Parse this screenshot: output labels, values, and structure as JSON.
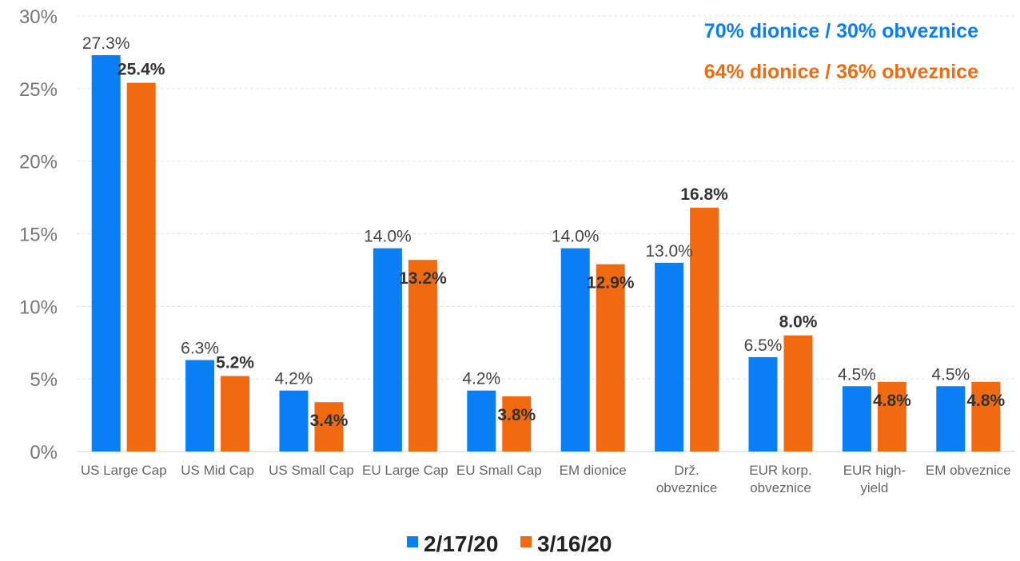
{
  "chart_data": {
    "type": "bar",
    "title": "",
    "xlabel": "",
    "ylabel": "",
    "ylim": [
      0,
      30
    ],
    "yticks": [
      0,
      5,
      10,
      15,
      20,
      25,
      30
    ],
    "ytick_labels": [
      "0%",
      "5%",
      "10%",
      "15%",
      "20%",
      "25%",
      "30%"
    ],
    "grid": true,
    "legend_position": "bottom-center",
    "categories": [
      [
        "US Large Cap"
      ],
      [
        "US Mid Cap"
      ],
      [
        "US Small Cap"
      ],
      [
        "EU Large Cap"
      ],
      [
        "EU Small Cap"
      ],
      [
        "EM dionice"
      ],
      [
        "Drž.",
        "obveznice"
      ],
      [
        "EUR korp.",
        "obveznice"
      ],
      [
        "EUR high-",
        "yield"
      ],
      [
        "EM obveznice"
      ]
    ],
    "series": [
      {
        "name": "2/17/20",
        "color": "#0a7ff5",
        "values": [
          27.3,
          6.3,
          4.2,
          14.0,
          4.2,
          14.0,
          13.0,
          6.5,
          4.5,
          4.5
        ],
        "labels": [
          "27.3%",
          "6.3%",
          "4.2%",
          "14.0%",
          "4.2%",
          "14.0%",
          "13.0%",
          "6.5%",
          "4.5%",
          "4.5%"
        ]
      },
      {
        "name": "3/16/20",
        "color": "#f26a10",
        "values": [
          25.4,
          5.2,
          3.4,
          13.2,
          3.8,
          12.9,
          16.8,
          8.0,
          4.8,
          4.8
        ],
        "labels": [
          "25.4%",
          "5.2%",
          "3.4%",
          "13.2%",
          "3.8%",
          "12.9%",
          "16.8%",
          "8.0%",
          "4.8%",
          "4.8%"
        ]
      }
    ],
    "annotations": [
      {
        "text": "70% dionice / 30% obveznice",
        "color": "#0a7ff5"
      },
      {
        "text": "64% dionice / 36% obveznice",
        "color": "#f26a10"
      }
    ]
  }
}
